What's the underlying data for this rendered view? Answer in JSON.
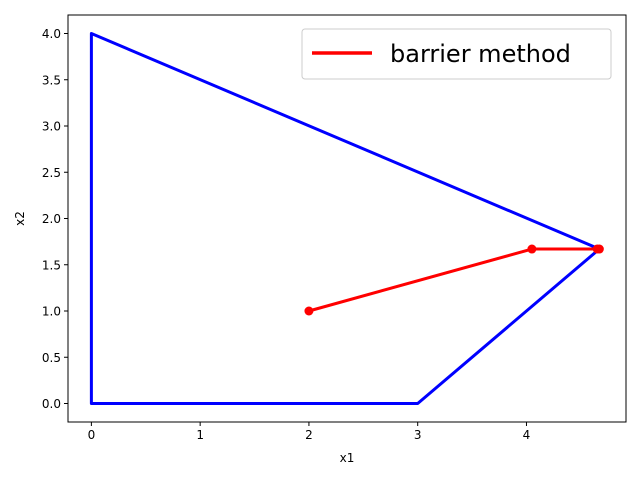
{
  "chart_data": {
    "type": "line",
    "title": "",
    "xlabel": "x1",
    "ylabel": "x2",
    "xlim": [
      -0.215,
      4.915
    ],
    "ylim": [
      -0.2,
      4.2
    ],
    "xticks": [
      0,
      1,
      2,
      3,
      4
    ],
    "yticks": [
      0.0,
      0.5,
      1.0,
      1.5,
      2.0,
      2.5,
      3.0,
      3.5,
      4.0
    ],
    "xtick_labels": [
      "0",
      "1",
      "2",
      "3",
      "4"
    ],
    "ytick_labels": [
      "0.0",
      "0.5",
      "1.0",
      "1.5",
      "2.0",
      "2.5",
      "3.0",
      "3.5",
      "4.0"
    ],
    "grid": false,
    "legend_position": "top-right",
    "series": [
      {
        "role": "feasible-region",
        "color": "#0000ff",
        "markers": false,
        "points": [
          [
            0,
            0
          ],
          [
            0,
            4
          ],
          [
            4.67,
            1.67
          ],
          [
            3,
            0
          ],
          [
            0,
            0
          ]
        ]
      },
      {
        "role": "barrier-path",
        "name": "barrier method",
        "color": "#ff0000",
        "markers": true,
        "points": [
          [
            2,
            1
          ],
          [
            4.05,
            1.67
          ],
          [
            4.65,
            1.67
          ],
          [
            4.67,
            1.67
          ]
        ]
      }
    ]
  }
}
